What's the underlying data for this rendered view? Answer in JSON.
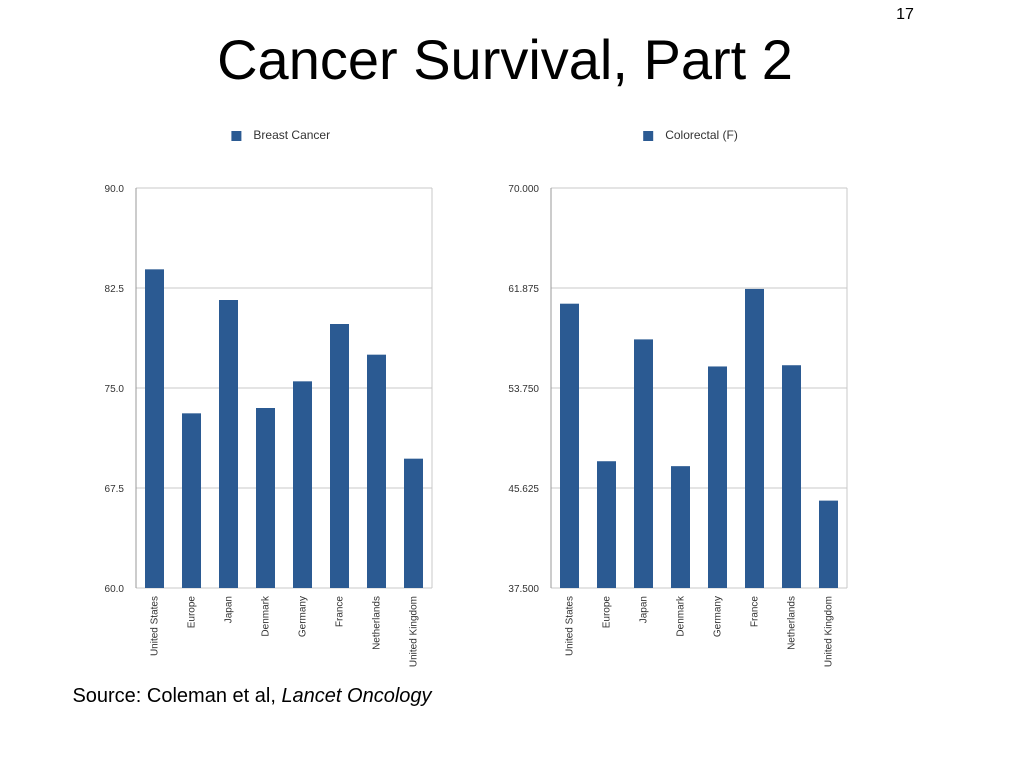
{
  "page": {
    "slide_number": "17",
    "title": "Cancer Survival, Part 2",
    "source_text": "Source: Coleman et al,",
    "source_journal": "Lancet Oncology"
  },
  "colors": {
    "bar": "#2b5a92",
    "grid": "#c8c8c8",
    "axis": "#999999"
  },
  "chart_data": [
    {
      "type": "bar",
      "title": "",
      "xlabel": "",
      "ylabel": "",
      "legend": "top",
      "grid": true,
      "categories": [
        "United States",
        "Europe",
        "Japan",
        "Denmark",
        "Germany",
        "France",
        "Netherlands",
        "United Kingdom"
      ],
      "series": [
        {
          "name": "Breast Cancer",
          "values": [
            83.9,
            73.1,
            81.6,
            73.5,
            75.5,
            79.8,
            77.5,
            69.7
          ]
        }
      ],
      "ylim": [
        60.0,
        90.0
      ],
      "yticks": [
        "90.0",
        "82.5",
        "75.0",
        "67.5",
        "60.0"
      ]
    },
    {
      "type": "bar",
      "title": "",
      "xlabel": "",
      "ylabel": "",
      "legend": "top",
      "grid": true,
      "categories": [
        "United States",
        "Europe",
        "Japan",
        "Denmark",
        "Germany",
        "France",
        "Netherlands",
        "United Kingdom"
      ],
      "series": [
        {
          "name": "Colorectal (F)",
          "values": [
            60.6,
            47.8,
            57.7,
            47.4,
            55.5,
            61.8,
            55.6,
            44.6
          ]
        }
      ],
      "ylim": [
        37.5,
        70.0
      ],
      "yticks": [
        "70.000",
        "61.875",
        "53.750",
        "45.625",
        "37.500"
      ]
    }
  ]
}
